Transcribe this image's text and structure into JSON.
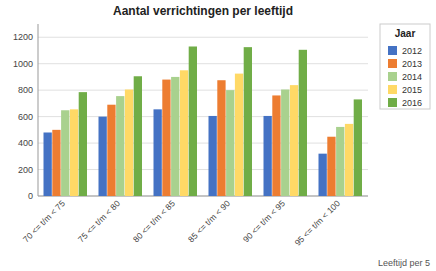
{
  "chart_data": {
    "type": "bar",
    "title": "Aantal verrichtingen per leeftijd",
    "categories": [
      "70 <= t/m < 75",
      "75 <= t/m < 80",
      "80 <= t/m < 85",
      "85 <= t/m < 90",
      "90 <= t/m < 95",
      "95 <= t/m < 100"
    ],
    "series": [
      {
        "name": "2012",
        "color": "#4472C4",
        "values": [
          480,
          600,
          655,
          605,
          605,
          320
        ]
      },
      {
        "name": "2013",
        "color": "#ED7D31",
        "values": [
          500,
          690,
          880,
          875,
          760,
          448
        ]
      },
      {
        "name": "2014",
        "color": "#A9D18E",
        "values": [
          648,
          755,
          900,
          800,
          805,
          522
        ]
      },
      {
        "name": "2015",
        "color": "#FFD966",
        "values": [
          655,
          805,
          950,
          925,
          838,
          545
        ]
      },
      {
        "name": "2016",
        "color": "#70AD47",
        "values": [
          785,
          905,
          1130,
          1125,
          1105,
          730
        ]
      }
    ],
    "legend_title": "Jaar",
    "xlabel": "Leeftijd per 5",
    "ylim": [
      0,
      1300
    ],
    "yticks": [
      0,
      200,
      400,
      600,
      800,
      1000,
      1200
    ],
    "grid": true,
    "legend": "upper right"
  }
}
